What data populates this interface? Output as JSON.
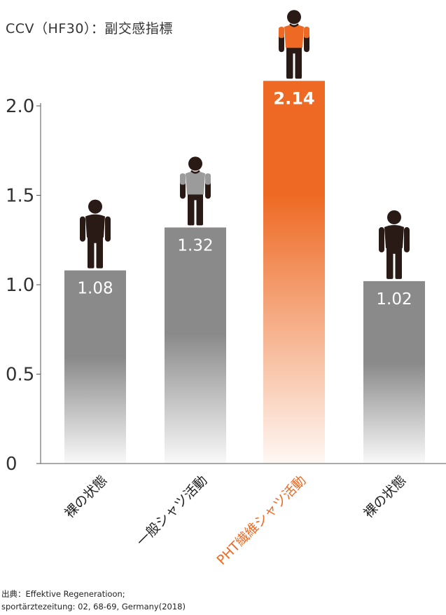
{
  "title": "CCV（HF30）：副交感指標",
  "source": {
    "line1": "出典：Effektive Regeneratioon;",
    "line2": "sportärztezeitung: 02, 68-69, Germany(2018)"
  },
  "colors": {
    "bar_gray": "#8a8a8a",
    "bar_highlight": "#ee6a24",
    "figure_dark": "#2a1a15",
    "shirt_gray": "#9b9b9b",
    "axis": "#555555"
  },
  "chart_data": {
    "type": "bar",
    "categories": [
      "裸の状態",
      "一般シャツ活動",
      "PHT繊維シャツ活動",
      "裸の状態"
    ],
    "values": [
      1.08,
      1.32,
      2.14,
      1.02
    ],
    "value_labels": [
      "1.08",
      "1.32",
      "2.14",
      "1.02"
    ],
    "highlight_index": 2,
    "figure_shirts": [
      "none",
      "gray",
      "orange",
      "none"
    ],
    "yticks": [
      0,
      0.5,
      1.0,
      1.5,
      2.0
    ],
    "ytick_labels": [
      "0",
      "0.5",
      "1.0",
      "1.5",
      "2.0"
    ],
    "ylim": [
      0,
      2.0
    ],
    "xlabel": "",
    "ylabel": "",
    "grid": false,
    "legend": "none"
  }
}
